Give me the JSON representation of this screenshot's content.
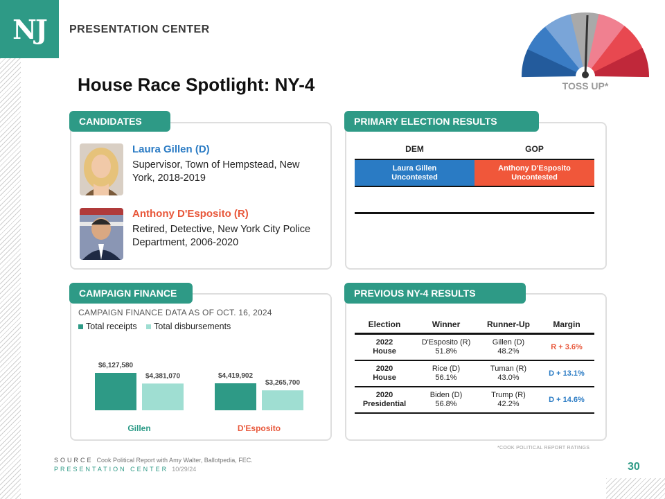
{
  "header": {
    "logo_text": "NJ",
    "brand": "PRESENTATION CENTER",
    "title": "House Race Spotlight: NY-4",
    "rating": "TOSS UP*",
    "rating_colors": [
      "#235b9c",
      "#3a7cc4",
      "#7aa5d8",
      "#a9a9a9",
      "#f08090",
      "#e84850",
      "#c0283a"
    ]
  },
  "candidates": {
    "tab": "CANDIDATES",
    "items": [
      {
        "name": "Laura Gillen (D)",
        "desc": "Supervisor, Town of Hempstead, New York, 2018-2019",
        "color": "#2a7bc4"
      },
      {
        "name": "Anthony D'Esposito (R)",
        "desc": "Retired, Detective, New York City Police Department, 2006-2020",
        "color": "#e8573a"
      }
    ]
  },
  "primary": {
    "tab": "PRIMARY ELECTION RESULTS",
    "dem_label": "DEM",
    "gop_label": "GOP",
    "dem_name": "Laura Gillen",
    "dem_status": "Uncontested",
    "gop_name": "Anthony D'Esposito",
    "gop_status": "Uncontested",
    "dem_color": "#2a7bc4",
    "gop_color": "#f0573a"
  },
  "finance": {
    "tab": "CAMPAIGN FINANCE",
    "note": "CAMPAIGN FINANCE DATA AS OF OCT. 16, 2024"
  },
  "chart_data": {
    "type": "bar",
    "categories": [
      "Gillen",
      "D'Esposito"
    ],
    "category_colors": [
      "#2a9a86",
      "#e8573a"
    ],
    "series": [
      {
        "name": "Total receipts",
        "values": [
          6127580,
          4419902
        ],
        "labels": [
          "$6,127,580",
          "$4,419,902"
        ],
        "color": "#2e9a86"
      },
      {
        "name": "Total disbursements",
        "values": [
          4381070,
          3265700
        ],
        "labels": [
          "$4,381,070",
          "$3,265,700"
        ],
        "color": "#9fded2"
      }
    ],
    "ylim": [
      0,
      6127580
    ]
  },
  "previous": {
    "tab": "PREVIOUS NY-4 RESULTS",
    "headers": [
      "Election",
      "Winner",
      "Runner-Up",
      "Margin"
    ],
    "rows": [
      {
        "year": "2022",
        "type": "House",
        "winner": "D'Esposito (R)",
        "winner_pct": "51.8%",
        "runner": "Gillen (D)",
        "runner_pct": "48.2%",
        "margin": "R + 3.6%",
        "margin_color": "#e8573a"
      },
      {
        "year": "2020",
        "type": "House",
        "winner": "Rice (D)",
        "winner_pct": "56.1%",
        "runner": "Tuman (R)",
        "runner_pct": "43.0%",
        "margin": "D + 13.1%",
        "margin_color": "#2a7bc4"
      },
      {
        "year": "2020",
        "type": "Presidential",
        "winner": "Biden (D)",
        "winner_pct": "56.8%",
        "runner": "Trump (R)",
        "runner_pct": "42.2%",
        "margin": "D + 14.6%",
        "margin_color": "#2a7bc4"
      }
    ],
    "footnote": "*COOK POLITICAL REPORT RATINGS"
  },
  "footer": {
    "source_label": "SOURCE",
    "source_text": "Cook Political Report with Amy Walter, Ballotpedia, FEC.",
    "pres_label": "PRESENTATION CENTER",
    "date": "10/29/24",
    "page": "30"
  }
}
